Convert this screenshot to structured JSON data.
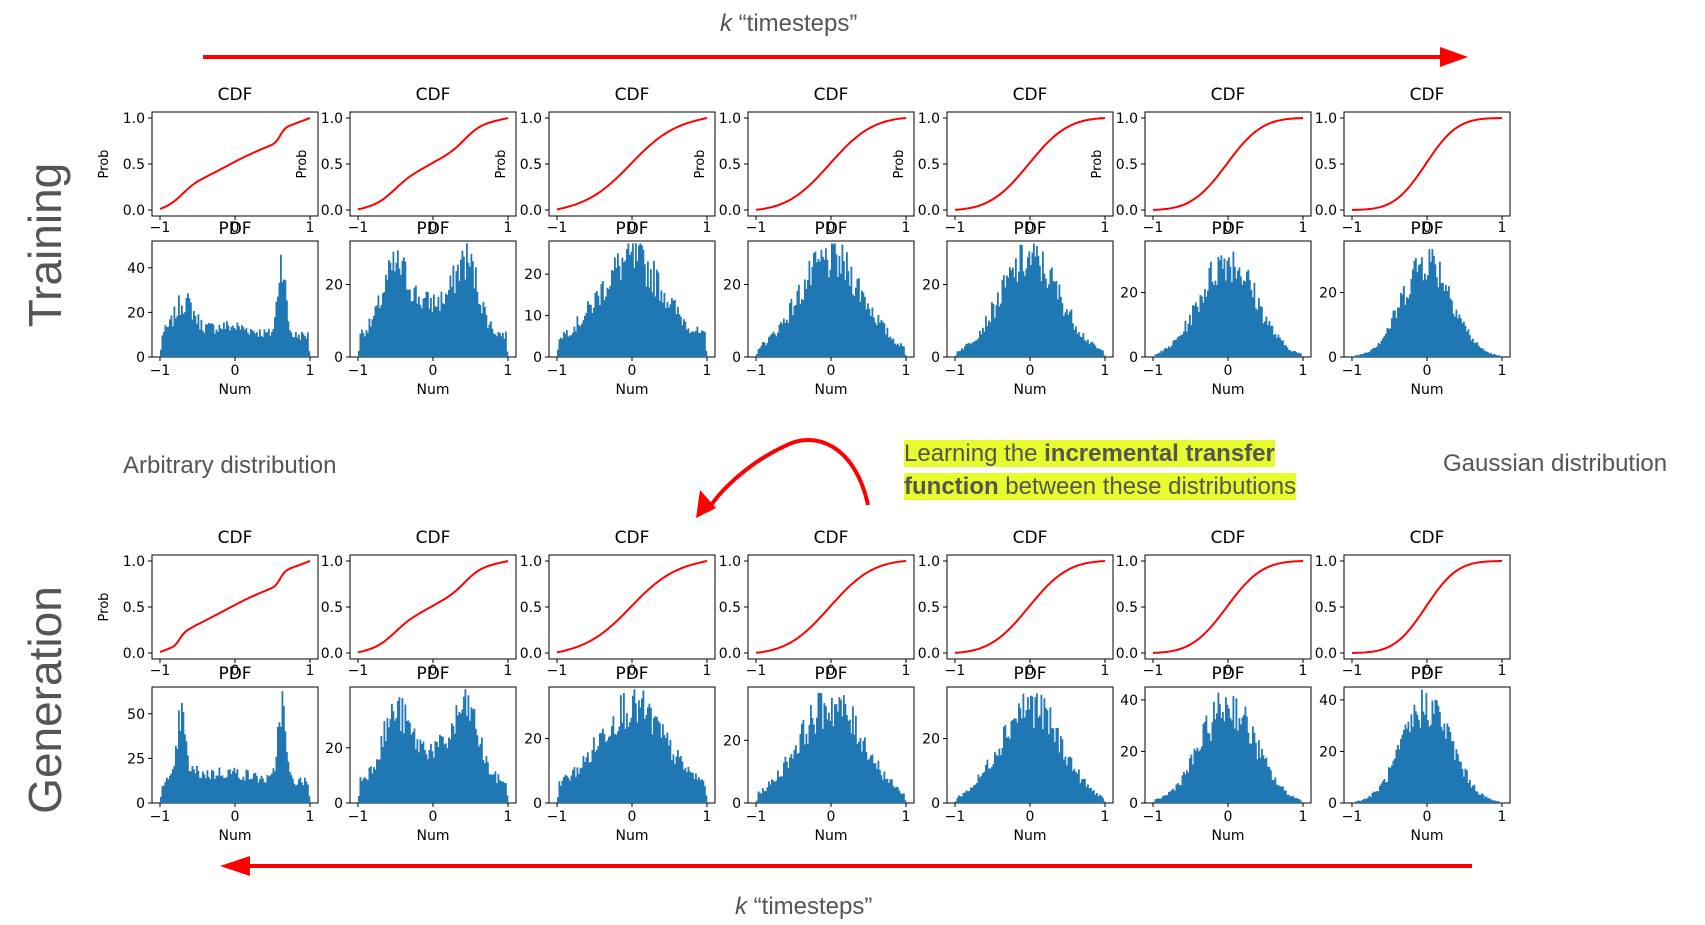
{
  "header": {
    "top_label_var": "k",
    "top_label_rest": " “timesteps”"
  },
  "footer": {
    "bottom_label_var": "k",
    "bottom_label_rest": " “timesteps”"
  },
  "rows": {
    "training": "Training",
    "generation": "Generation"
  },
  "annotations": {
    "left": "Arbitrary distribution",
    "right": "Gaussian distribution",
    "callout_pre": "Learning the ",
    "callout_bold1": "incremental transfer",
    "callout_bold2": "function",
    "callout_post": " between these distributions"
  },
  "colors": {
    "arrow": "#ff0000",
    "cdf_line": "#ff0000",
    "bars": "#1f77b4",
    "highlight": "#e8fb2c"
  },
  "plot_text": {
    "cdf_title": "CDF",
    "pdf_title": "PDF",
    "cdf_ylabel": "Prob",
    "pdf_xlabel": "Num",
    "x_ticks": [
      "−1",
      "0",
      "1"
    ],
    "cdf_y_ticks": [
      "0.0",
      "0.5",
      "1.0"
    ]
  },
  "chart_data": [
    {
      "row": "Training",
      "type": "line+histogram",
      "panels": [
        {
          "step": 1,
          "cdf_ylabel_shown": true,
          "pdf_y_ticks": [
            "0",
            "20",
            "40"
          ],
          "pdf_ylim": [
            0,
            52
          ],
          "shape": "bimodal"
        },
        {
          "step": 2,
          "cdf_ylabel_shown": true,
          "pdf_y_ticks": [
            "0",
            "20"
          ],
          "pdf_ylim": [
            0,
            32
          ],
          "shape": "bimodal"
        },
        {
          "step": 3,
          "cdf_ylabel_shown": true,
          "pdf_y_ticks": [
            "0",
            "10",
            "20"
          ],
          "pdf_ylim": [
            0,
            28
          ],
          "shape": "broad"
        },
        {
          "step": 4,
          "cdf_ylabel_shown": true,
          "pdf_y_ticks": [
            "0",
            "20"
          ],
          "pdf_ylim": [
            0,
            32
          ],
          "shape": "gaussian"
        },
        {
          "step": 5,
          "cdf_ylabel_shown": true,
          "pdf_y_ticks": [
            "0",
            "20"
          ],
          "pdf_ylim": [
            0,
            32
          ],
          "shape": "gaussian"
        },
        {
          "step": 6,
          "cdf_ylabel_shown": true,
          "pdf_y_ticks": [
            "0",
            "20"
          ],
          "pdf_ylim": [
            0,
            36
          ],
          "shape": "gaussian"
        },
        {
          "step": 7,
          "cdf_ylabel_shown": false,
          "pdf_y_ticks": [
            "0",
            "20"
          ],
          "pdf_ylim": [
            0,
            36
          ],
          "shape": "gaussian"
        }
      ]
    },
    {
      "row": "Generation",
      "type": "line+histogram",
      "panels": [
        {
          "step": 1,
          "cdf_ylabel_shown": true,
          "pdf_y_ticks": [
            "0",
            "25",
            "50"
          ],
          "pdf_ylim": [
            0,
            65
          ],
          "shape": "bimodal"
        },
        {
          "step": 2,
          "cdf_ylabel_shown": false,
          "pdf_y_ticks": [
            "0",
            "20"
          ],
          "pdf_ylim": [
            0,
            42
          ],
          "shape": "bimodal"
        },
        {
          "step": 3,
          "cdf_ylabel_shown": false,
          "pdf_y_ticks": [
            "0",
            "20"
          ],
          "pdf_ylim": [
            0,
            36
          ],
          "shape": "broad"
        },
        {
          "step": 4,
          "cdf_ylabel_shown": false,
          "pdf_y_ticks": [
            "0",
            "20"
          ],
          "pdf_ylim": [
            0,
            37
          ],
          "shape": "gaussian"
        },
        {
          "step": 5,
          "cdf_ylabel_shown": false,
          "pdf_y_ticks": [
            "0",
            "20"
          ],
          "pdf_ylim": [
            0,
            36
          ],
          "shape": "gaussian"
        },
        {
          "step": 6,
          "cdf_ylabel_shown": false,
          "pdf_y_ticks": [
            "0",
            "20",
            "40"
          ],
          "pdf_ylim": [
            0,
            45
          ],
          "shape": "gaussian"
        },
        {
          "step": 7,
          "cdf_ylabel_shown": false,
          "pdf_y_ticks": [
            "0",
            "20",
            "40"
          ],
          "pdf_ylim": [
            0,
            45
          ],
          "shape": "gaussian"
        }
      ]
    }
  ]
}
